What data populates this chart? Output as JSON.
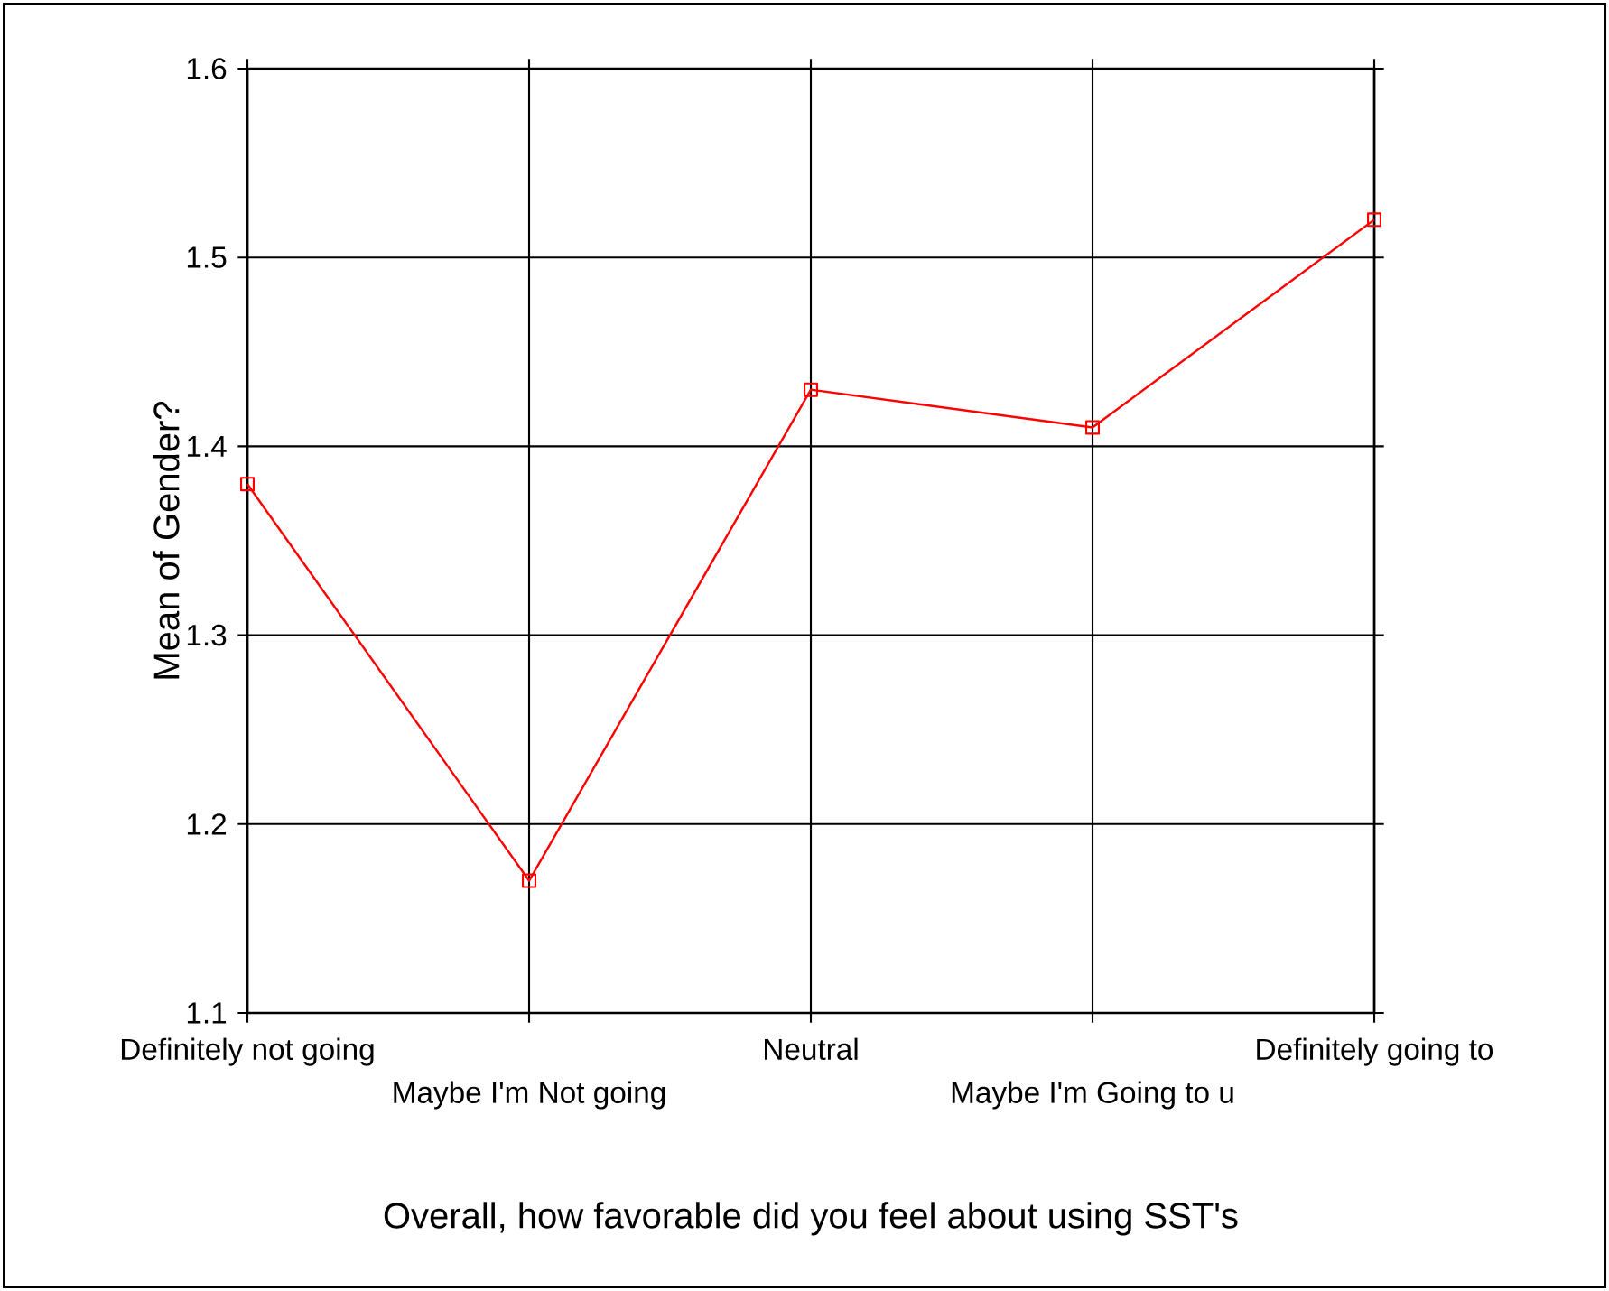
{
  "chart_data": {
    "type": "line",
    "xlabel": "Overall, how favorable did you feel about using SST's",
    "ylabel": "Mean of Gender?",
    "categories": [
      "Definitely not going",
      "Maybe I'm Not going",
      "Neutral",
      "Maybe I'm Going to u",
      "Definitely going to"
    ],
    "values": [
      1.38,
      1.17,
      1.43,
      1.41,
      1.52
    ],
    "color": "#ff0000",
    "marker": "square",
    "line_style": "solid",
    "ylim": [
      1.1,
      1.6
    ],
    "yticks": [
      1.1,
      1.2,
      1.3,
      1.4,
      1.5,
      1.6
    ],
    "grid": true
  }
}
